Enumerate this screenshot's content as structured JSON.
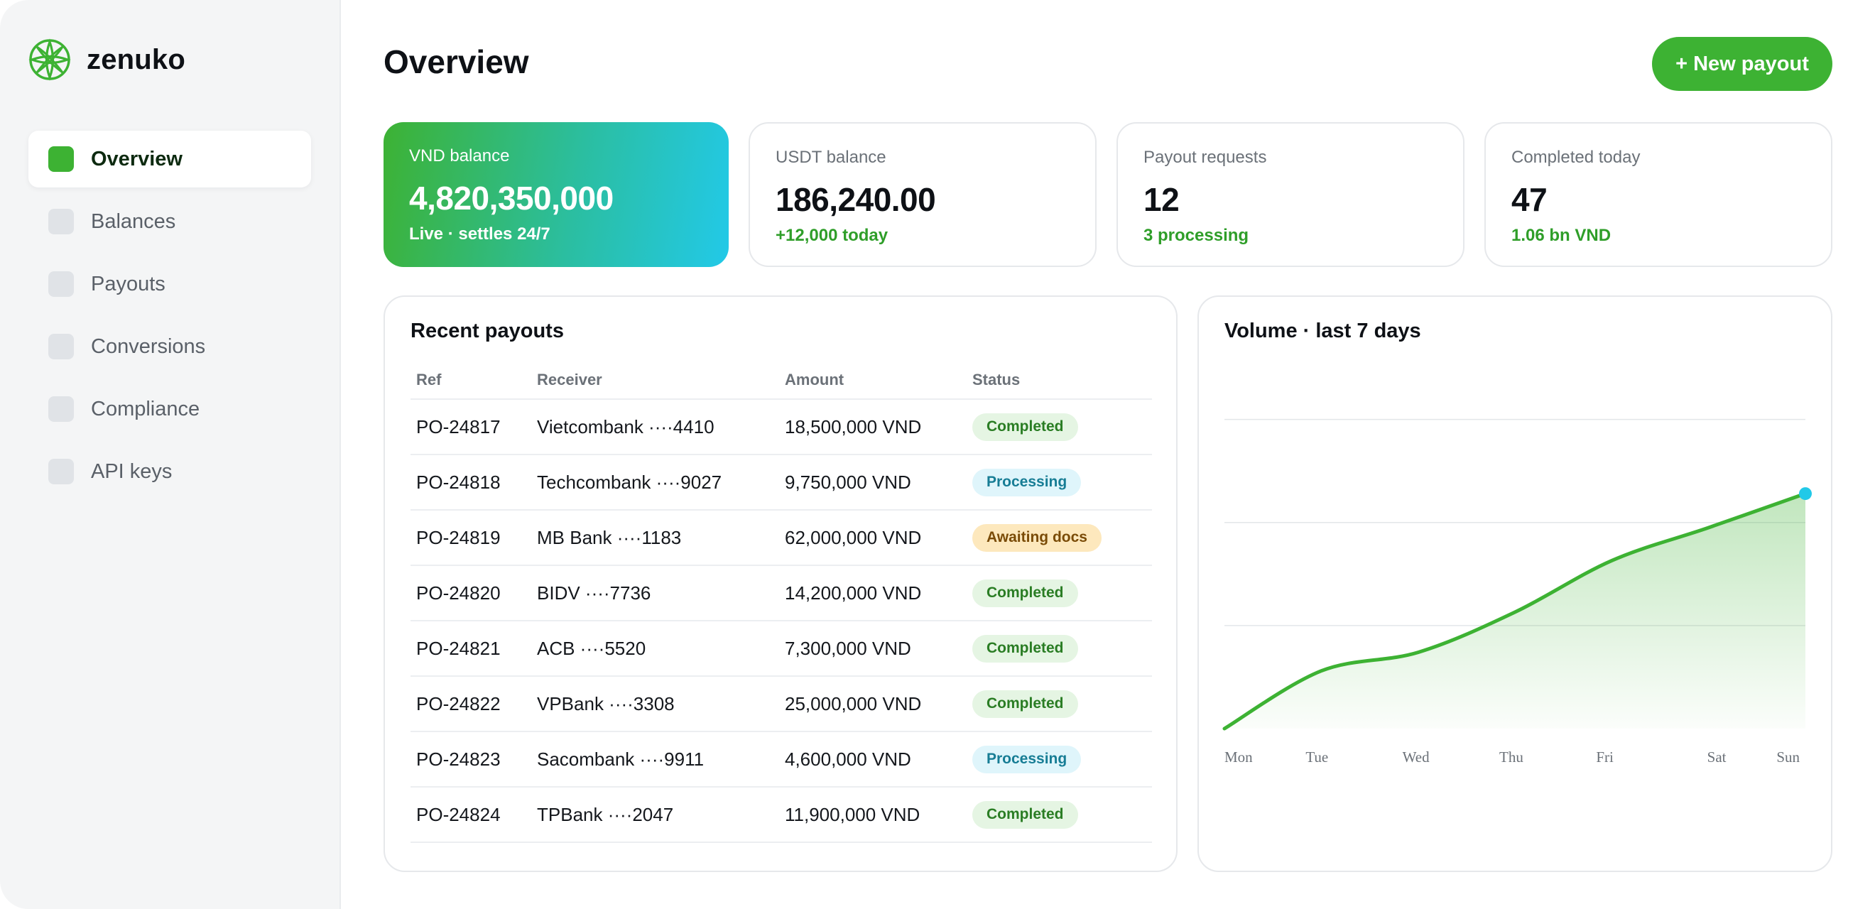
{
  "brand": {
    "name": "zenuko",
    "logo_icon": "leaf-knot-logo-icon",
    "accent": "#3db233"
  },
  "sidebar": {
    "items": [
      {
        "label": "Overview",
        "active": true
      },
      {
        "label": "Balances",
        "active": false
      },
      {
        "label": "Payouts",
        "active": false
      },
      {
        "label": "Conversions",
        "active": false
      },
      {
        "label": "Compliance",
        "active": false
      },
      {
        "label": "API keys",
        "active": false
      }
    ]
  },
  "header": {
    "title": "Overview",
    "new_payout_label": "+ New payout"
  },
  "stats": [
    {
      "label": "VND balance",
      "value": "4,820,350,000",
      "sub": "Live · settles 24/7"
    },
    {
      "label": "USDT balance",
      "value": "186,240.00",
      "sub": "+12,000 today"
    },
    {
      "label": "Payout requests",
      "value": "12",
      "sub": "3 processing"
    },
    {
      "label": "Completed today",
      "value": "47",
      "sub": "1.06 bn VND"
    }
  ],
  "payouts": {
    "title": "Recent payouts",
    "columns": [
      "Ref",
      "Receiver",
      "Amount",
      "Status"
    ],
    "rows": [
      {
        "ref": "PO-24817",
        "receiver": "Vietcombank ····4410",
        "amount": "18,500,000 VND",
        "status": "Completed",
        "status_kind": "completed"
      },
      {
        "ref": "PO-24818",
        "receiver": "Techcombank ····9027",
        "amount": "9,750,000 VND",
        "status": "Processing",
        "status_kind": "processing"
      },
      {
        "ref": "PO-24819",
        "receiver": "MB Bank ····1183",
        "amount": "62,000,000 VND",
        "status": "Awaiting docs",
        "status_kind": "awaiting"
      },
      {
        "ref": "PO-24820",
        "receiver": "BIDV ····7736",
        "amount": "14,200,000 VND",
        "status": "Completed",
        "status_kind": "completed"
      },
      {
        "ref": "PO-24821",
        "receiver": "ACB ····5520",
        "amount": "7,300,000 VND",
        "status": "Completed",
        "status_kind": "completed"
      },
      {
        "ref": "PO-24822",
        "receiver": "VPBank ····3308",
        "amount": "25,000,000 VND",
        "status": "Completed",
        "status_kind": "completed"
      },
      {
        "ref": "PO-24823",
        "receiver": "Sacombank ····9911",
        "amount": "4,600,000 VND",
        "status": "Processing",
        "status_kind": "processing"
      },
      {
        "ref": "PO-24824",
        "receiver": "TPBank ····2047",
        "amount": "11,900,000 VND",
        "status": "Completed",
        "status_kind": "completed"
      }
    ]
  },
  "volume": {
    "title": "Volume · last 7 days"
  },
  "chart_data": {
    "type": "area",
    "title": "Volume · last 7 days",
    "categories": [
      "Mon",
      "Tue",
      "Wed",
      "Thu",
      "Fri",
      "Sat",
      "Sun"
    ],
    "series": [
      {
        "values": [
          0.0,
          0.56,
          0.74,
          1.13,
          1.63,
          1.95,
          2.28
        ]
      }
    ],
    "ylim": [
      0,
      3.5
    ],
    "yticks": [
      0,
      1,
      2,
      3
    ],
    "grid": true,
    "line_color": "#3db233",
    "endpoint_color": "#22c9e8"
  }
}
